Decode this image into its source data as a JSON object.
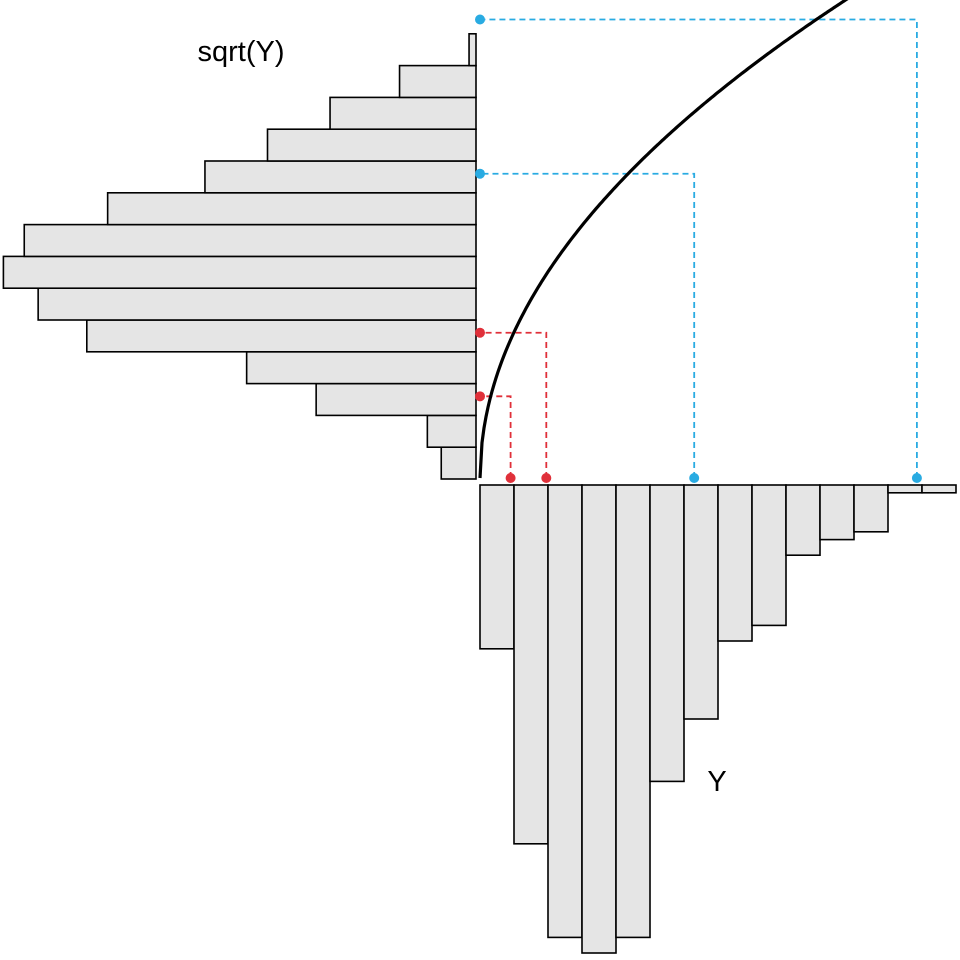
{
  "chart_data": [
    {
      "type": "bar",
      "orientation": "horizontal",
      "label": "sqrt(Y)",
      "bin_index": [
        1,
        2,
        3,
        4,
        5,
        6,
        7,
        8,
        9,
        10,
        11,
        12,
        13,
        14
      ],
      "values": [
        5,
        7,
        23,
        33,
        56,
        63,
        68,
        65,
        53,
        39,
        30,
        21,
        11,
        1
      ],
      "xlabel": "",
      "ylabel": ""
    },
    {
      "type": "bar",
      "orientation": "vertical-downward",
      "label": "Y",
      "bin_index": [
        1,
        2,
        3,
        4,
        5,
        6,
        7,
        8,
        9,
        10,
        11,
        12,
        13,
        14
      ],
      "values": [
        21,
        46,
        58,
        60,
        58,
        38,
        30,
        20,
        18,
        9,
        7,
        6,
        1,
        1
      ],
      "xlabel": "",
      "ylabel": ""
    },
    {
      "type": "line",
      "function": "sqrt",
      "description_label": "",
      "mapping_lines": [
        {
          "from_y_bin": 0.9,
          "to_sqrt_bin": 2.6,
          "color": "#e0303a"
        },
        {
          "from_y_bin": 1.95,
          "to_sqrt_bin": 4.6,
          "color": "#e0303a"
        },
        {
          "from_y_bin": 6.3,
          "to_sqrt_bin": 9.6,
          "color": "#29abe2"
        },
        {
          "from_y_bin": 12.85,
          "to_sqrt_bin": 14.45,
          "color": "#29abe2"
        }
      ]
    }
  ],
  "colors": {
    "bar_fill": "#e5e5e5",
    "bar_stroke": "#000000",
    "curve": "#000000",
    "red": "#e0303a",
    "blue": "#29abe2"
  }
}
